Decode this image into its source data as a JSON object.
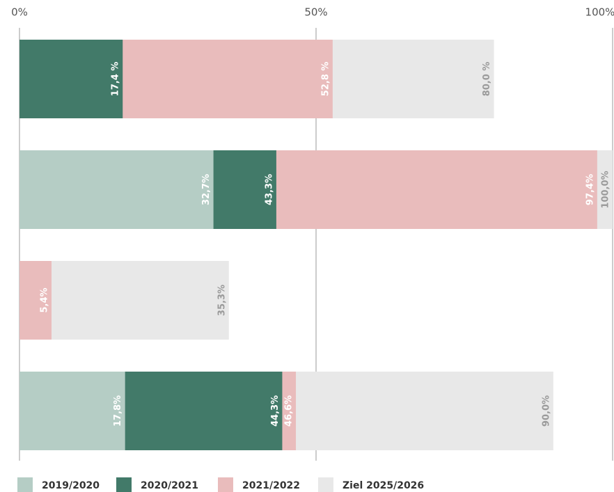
{
  "chart_data": {
    "type": "overlap-bar",
    "orientation": "horizontal",
    "categories": [
      null,
      null,
      null,
      null
    ],
    "series": [
      {
        "name": "2019/2020",
        "color": "#b5cdc5",
        "label_color": "#ffffff",
        "values": [
          null,
          32.7,
          null,
          17.8
        ],
        "value_labels": [
          null,
          "32,7%",
          null,
          "17,8%"
        ]
      },
      {
        "name": "2020/2021",
        "color": "#427a69",
        "label_color": "#ffffff",
        "values": [
          17.4,
          43.3,
          null,
          44.3
        ],
        "value_labels": [
          "17,4 %",
          "43,3%",
          null,
          "44,3%"
        ]
      },
      {
        "name": "2021/2022",
        "color": "#e9bcbc",
        "label_color": "#ffffff",
        "values": [
          52.8,
          97.4,
          5.4,
          46.6
        ],
        "value_labels": [
          "52,8 %",
          "97,4%",
          "5,4%",
          "46,6%"
        ]
      },
      {
        "name": "Ziel 2025/2026",
        "color": "#e8e8e8",
        "label_color": "#9a9a9a",
        "values": [
          80.0,
          100.0,
          35.3,
          90.0
        ],
        "value_labels": [
          "80,0 %",
          "100,0%",
          "35,3%",
          "90,0%"
        ]
      }
    ],
    "xlim": [
      0,
      100
    ],
    "xticks": [
      {
        "value": 0,
        "label": "0%"
      },
      {
        "value": 50,
        "label": "50%"
      },
      {
        "value": 100,
        "label": "100%"
      }
    ],
    "grid": true,
    "legend": "bottom"
  }
}
